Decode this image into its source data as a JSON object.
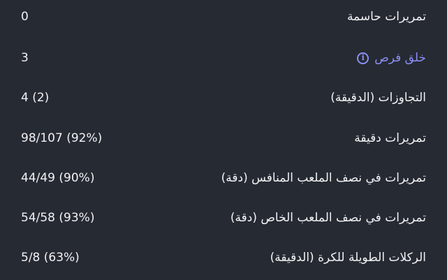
{
  "stats": [
    {
      "label": "تمريرات حاسمة",
      "value": "0"
    },
    {
      "label": "خلق فرص",
      "value": "3",
      "link": true,
      "icon": "info-icon"
    },
    {
      "label": "التجاوزات (الدقيقة)",
      "value": "4 (2)"
    },
    {
      "label": "تمريرات دقيقة",
      "value": "98/107 (92%)"
    },
    {
      "label": "تمريرات في نصف الملعب المنافس (دقة)",
      "value": "44/49 (90%)"
    },
    {
      "label": "تمريرات في نصف الملعب الخاص (دقة)",
      "value": "54/58 (93%)"
    },
    {
      "label": "الركلات الطويلة للكرة (الدقيقة)",
      "value": "5/8 (63%)"
    }
  ],
  "info_glyph": "i",
  "colors": {
    "background": "#262a33",
    "text": "#f2f2f4",
    "link": "#8b8ff2"
  }
}
